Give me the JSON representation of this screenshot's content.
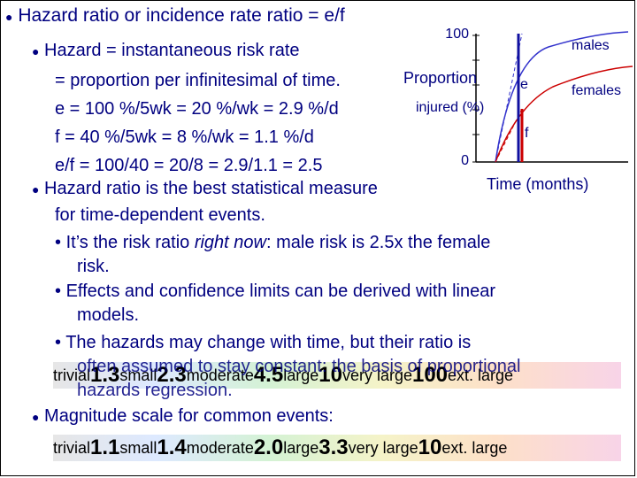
{
  "slide": {
    "title": "Hazard ratio or incidence rate ratio = e/f",
    "b1": "Hazard = instantaneous risk rate",
    "b1_l2": "= proportion per infinitesimal of time.",
    "b1_l3": "e = 100 %/5wk = 20 %/wk = 2.9 %/d",
    "b1_l4": "f = 40 %/5wk = 8 %/wk = 1.1 %/d",
    "b1_l5": "e/f = 100/40 = 20/8 = 2.9/1.1 = 2.5",
    "b2": "Hazard ratio is the best statistical measure",
    "b2_l2": "for time-dependent events.",
    "s1": "It’s the risk ratio",
    "s1_em": "right now",
    "s1_rest": ": male risk is 2.5x the female",
    "s1_l2": "risk.",
    "s2": "Effects and confidence limits can be derived with linear",
    "s2_l2": "models.",
    "s3": "The hazards may change with time, but their ratio is",
    "s3_l2": "often assumed to stay constant: the basis of proportional",
    "s3_l3": "hazards regression.",
    "b3": "Magnitude scale for common events:"
  },
  "chart": {
    "ytop": "100",
    "ybottom": "0",
    "ylabel_1": "Proportion",
    "ylabel_2": "injured (%)",
    "xlabel": "Time (months)",
    "males": "males",
    "females": "females",
    "e": "e",
    "f": "f"
  },
  "scale1": {
    "items": [
      "trivial",
      "1.3",
      "small",
      "2.3",
      "moderate",
      "4.5",
      "large",
      "10",
      "very large",
      "100",
      "ext. large"
    ]
  },
  "scale2": {
    "items": [
      "trivial",
      "1.1",
      "small",
      "1.4",
      "moderate",
      "2.0",
      "large",
      "3.3",
      "very large",
      "10",
      "ext. large"
    ]
  },
  "colors": {
    "text": "#000080",
    "males_line": "#3333cc",
    "e_line": "#1010a0",
    "f_line": "#cc0000"
  }
}
